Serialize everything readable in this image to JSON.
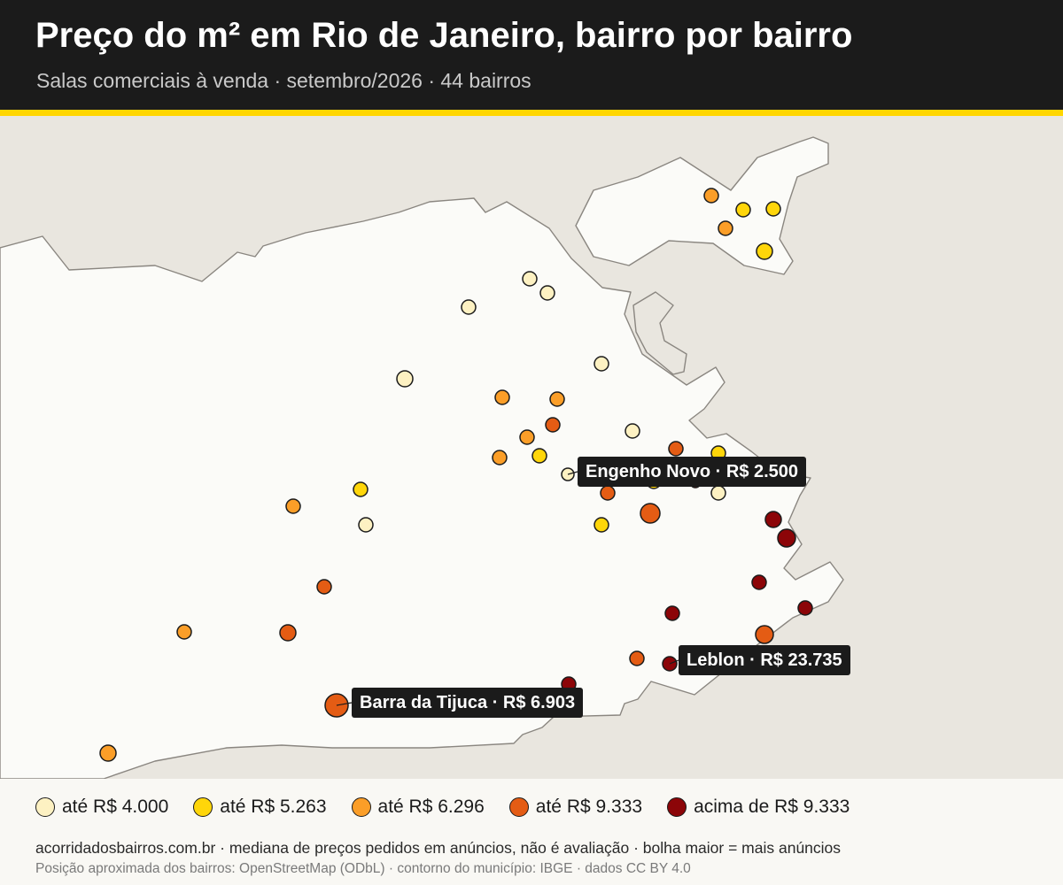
{
  "header": {
    "title": "Preço do m² em Rio de Janeiro, bairro por bairro",
    "subtitle": "Salas comerciais à venda · setembro/2026 · 44 bairros"
  },
  "colors": {
    "header_bg": "#1b1b1b",
    "accent": "#ffd600",
    "water": "#e9e6df",
    "land": "#fbfbf8",
    "coast": "#8a8680",
    "tier_1": "#fdf1c2",
    "tier_2": "#ffd60a",
    "tier_3": "#fb9e28",
    "tier_4": "#e45c14",
    "tier_5": "#8c0508"
  },
  "legend": [
    {
      "label": "até R$ 4.000",
      "color": "#fdf1c2"
    },
    {
      "label": "até R$ 5.263",
      "color": "#ffd60a"
    },
    {
      "label": "até R$ 6.296",
      "color": "#fb9e28"
    },
    {
      "label": "até R$ 9.333",
      "color": "#e45c14"
    },
    {
      "label": "acima de R$ 9.333",
      "color": "#8c0508"
    }
  ],
  "callouts": {
    "engenho_novo": "Engenho Novo · R$ 2.500",
    "leblon": "Leblon · R$ 23.735",
    "barra": "Barra da Tijuca · R$ 6.903"
  },
  "footnotes": {
    "line1": "acorridadosbairros.com.br · mediana de preços pedidos em anúncios, não é avaliação · bolha maior = mais anúncios",
    "line2": "Posição aproximada dos bairros: OpenStreetMap (ODbL) · contorno do município: IBGE · dados CC BY 4.0"
  }
}
